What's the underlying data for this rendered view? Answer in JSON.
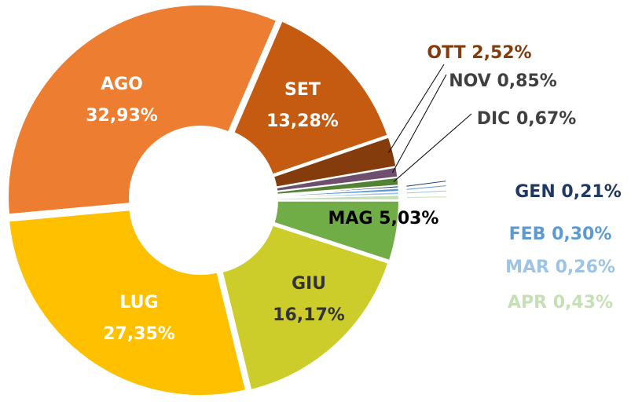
{
  "chart_data": {
    "type": "donut",
    "categories": [
      "GEN",
      "FEB",
      "MAR",
      "APR",
      "MAG",
      "GIU",
      "LUG",
      "AGO",
      "SET",
      "OTT",
      "NOV",
      "DIC"
    ],
    "values": [
      0.21,
      0.3,
      0.26,
      0.43,
      5.03,
      16.17,
      27.35,
      32.93,
      13.28,
      2.52,
      0.85,
      0.67
    ],
    "value_labels": [
      "0,21%",
      "0,30%",
      "0,26%",
      "0,43%",
      "5,03%",
      "16,17%",
      "27,35%",
      "32,93%",
      "13,28%",
      "2,52%",
      "0,85%",
      "0,67%"
    ],
    "colors": [
      "#1f3864",
      "#5b9bd5",
      "#9dc3e6",
      "#c5e0b4",
      "#70ad47",
      "#cccc2a",
      "#ffc000",
      "#ed7d31",
      "#c55a11",
      "#843c0c",
      "#6e4f6e",
      "#548235"
    ],
    "label_colors": [
      "#1f3864",
      "#5b9bd5",
      "#9dc3e6",
      "#c5e0b4",
      "#000000",
      "#333333",
      "#ffffff",
      "#ffffff",
      "#ffffff",
      "#843c0c",
      "#404040",
      "#404040"
    ]
  }
}
